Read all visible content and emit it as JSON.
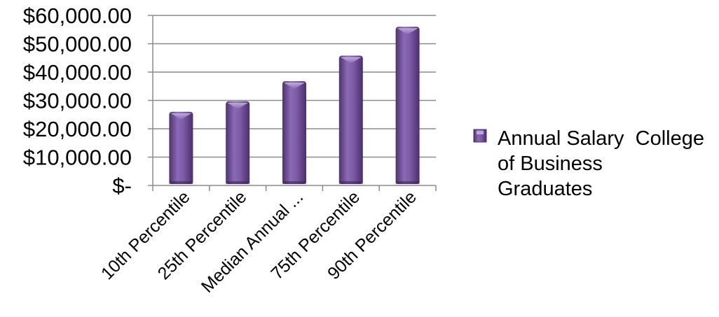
{
  "chart_data": {
    "type": "bar",
    "categories": [
      "10th Percentile",
      "25th Percentile",
      "Median Annual ...",
      "75th Percentile",
      "90th Percentile"
    ],
    "series": [
      {
        "name": "Annual Salary College of Business Graduates",
        "values": [
          26000,
          29700,
          36800,
          45800,
          56000
        ]
      }
    ],
    "ylim": [
      0,
      60000
    ],
    "yticks": [
      0,
      10000,
      20000,
      30000,
      40000,
      50000,
      60000
    ],
    "ytick_labels": [
      "$-",
      "$10,000.00",
      "$20,000.00",
      "$30,000.00",
      "$40,000.00",
      "$50,000.00",
      "$60,000.00"
    ],
    "grid": true,
    "legend_position": "right",
    "legend_lines": [
      "Annual Salary  College",
      "of Business",
      "Graduates"
    ],
    "colors": {
      "bar": "#7d5ba6",
      "bar_dark": "#4e3270",
      "bar_light": "#a98fcd",
      "grid": "#8c8c8c"
    }
  }
}
